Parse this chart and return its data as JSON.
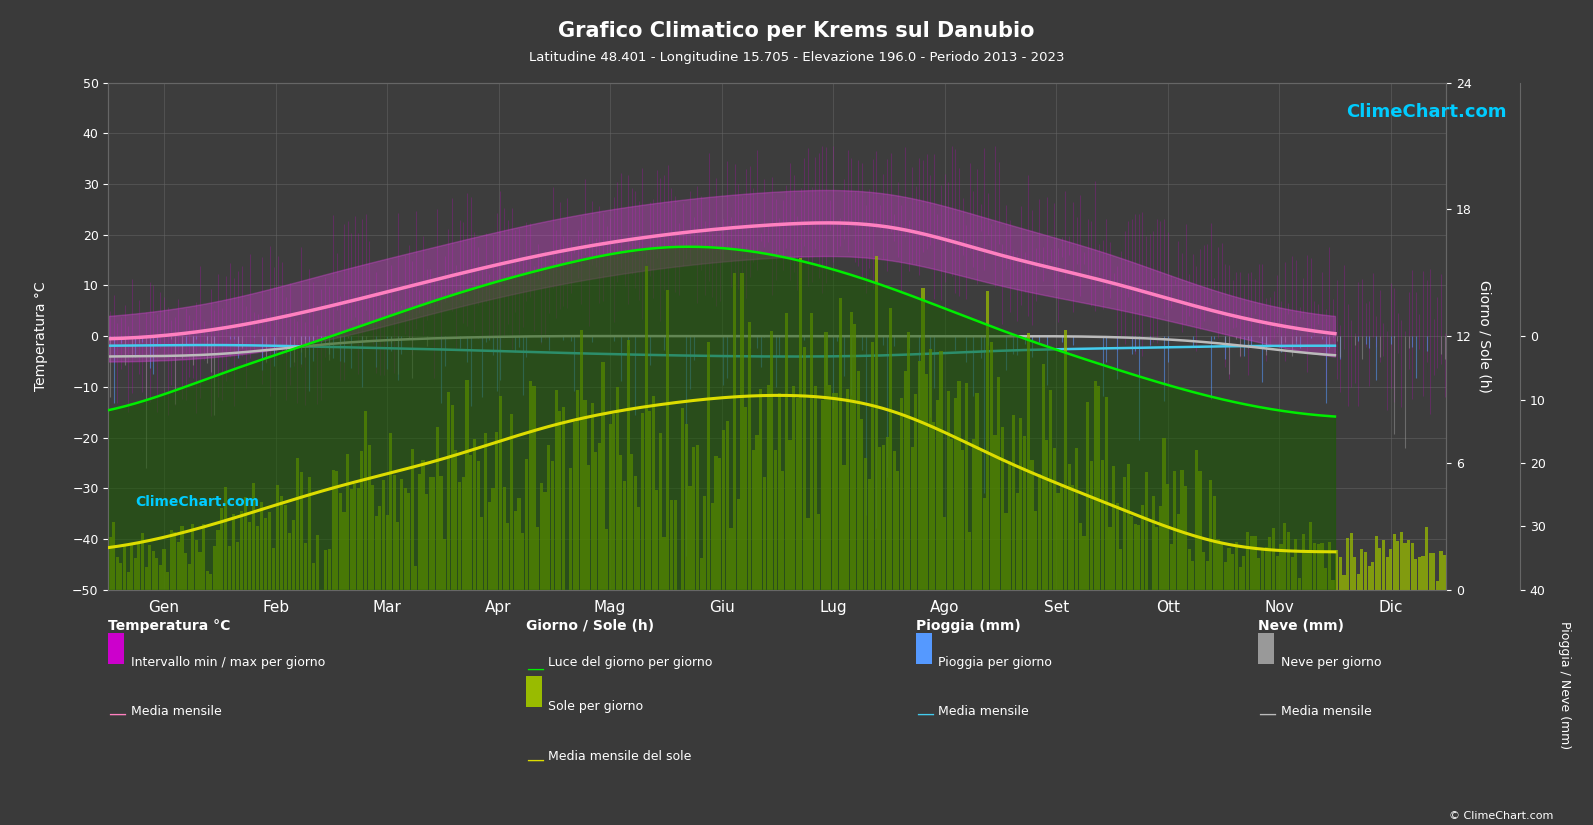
{
  "title": "Grafico Climatico per Krems sul Danubio",
  "subtitle": "Latitudine 48.401 - Longitudine 15.705 - Elevazione 196.0 - Periodo 2013 - 2023",
  "months": [
    "Gen",
    "Feb",
    "Mar",
    "Apr",
    "Mag",
    "Giu",
    "Lug",
    "Ago",
    "Set",
    "Ott",
    "Nov",
    "Dic"
  ],
  "background_color": "#3a3a3a",
  "plot_bg_color": "#3d3d3d",
  "temp_ylim": [
    -50,
    50
  ],
  "sun_ylim": [
    0,
    24
  ],
  "precip_ylim_mm": 40,
  "temp_mean": [
    -0.5,
    1.5,
    6.0,
    11.5,
    16.5,
    20.0,
    22.0,
    21.5,
    16.0,
    10.5,
    4.5,
    0.5
  ],
  "temp_max_mean": [
    4.0,
    7.0,
    12.5,
    18.0,
    23.0,
    26.5,
    28.5,
    28.0,
    22.5,
    16.0,
    8.5,
    4.0
  ],
  "temp_min_mean": [
    -5.0,
    -4.0,
    -0.5,
    5.0,
    10.0,
    13.5,
    15.5,
    15.0,
    10.0,
    5.5,
    0.5,
    -4.0
  ],
  "temp_max_abs": [
    14.0,
    18.0,
    25.0,
    30.0,
    34.0,
    37.0,
    38.5,
    38.0,
    32.0,
    25.0,
    18.0,
    14.0
  ],
  "temp_min_abs": [
    -16.0,
    -14.0,
    -9.0,
    -3.0,
    1.0,
    5.5,
    8.0,
    7.0,
    2.0,
    -4.0,
    -10.0,
    -16.0
  ],
  "daylight_hours": [
    8.5,
    10.2,
    12.0,
    13.8,
    15.3,
    16.2,
    15.8,
    14.3,
    12.3,
    10.5,
    9.0,
    8.2
  ],
  "sunshine_hours_mean": [
    2.0,
    3.2,
    4.8,
    6.2,
    7.8,
    8.8,
    9.2,
    8.5,
    6.2,
    4.0,
    2.2,
    1.8
  ],
  "rain_mean_mm": [
    1.5,
    1.4,
    1.7,
    2.1,
    2.6,
    3.0,
    3.2,
    3.0,
    2.3,
    1.9,
    1.6,
    1.5
  ],
  "snow_mean_mm": [
    3.2,
    2.8,
    1.2,
    0.3,
    0.0,
    0.0,
    0.0,
    0.0,
    0.0,
    0.15,
    1.2,
    3.0
  ],
  "grid_color": "#666666",
  "temp_mean_color": "#ff80c0",
  "daylight_color": "#00ee00",
  "sunshine_bar_color": "#99bb00",
  "sunshine_mean_color": "#dddd00",
  "rain_bar_color": "#5599ff",
  "rain_mean_color": "#44ccee",
  "snow_bar_color": "#999999",
  "snow_mean_color": "#bbbbbb",
  "logo_color_cyan": "#00ccff",
  "logo_color_yellow": "#dddd00",
  "logo_color_magenta": "#ff00ff",
  "copyright_text": "© ClimeChart.com"
}
